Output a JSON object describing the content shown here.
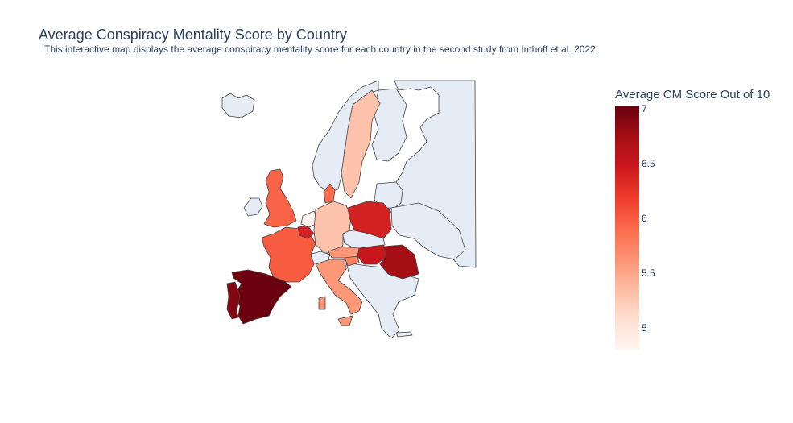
{
  "title": "Average Conspiracy Mentality Score by Country",
  "subtitle": "This interactive map displays the average conspiracy mentality score for each country in the second study from Imhoff et al. 2022.",
  "colorbar": {
    "title": "Average CM Score Out of 10",
    "min": 4.8,
    "max": 7.02,
    "ticks": [
      {
        "label": "7",
        "value": 7
      },
      {
        "label": "6.5",
        "value": 6.5
      },
      {
        "label": "6",
        "value": 6
      },
      {
        "label": "5.5",
        "value": 5.5
      },
      {
        "label": "5",
        "value": 5
      }
    ],
    "colorscale": [
      "#fff5f0",
      "#fee0d2",
      "#fcbba1",
      "#fc9272",
      "#fb6a4a",
      "#ef3b2c",
      "#cb181d",
      "#a50f15",
      "#67000d"
    ]
  },
  "no_data_color": "#e5ecf6",
  "chart_data": {
    "type": "choropleth",
    "scope": "europe",
    "countries": [
      "Spain",
      "Portugal",
      "Romania",
      "Hungary",
      "Poland",
      "Belgium",
      "France",
      "United Kingdom",
      "Denmark",
      "Slovenia",
      "Italy",
      "Austria",
      "Germany",
      "Sweden",
      "Netherlands"
    ],
    "values": [
      7.0,
      6.9,
      6.75,
      6.5,
      6.4,
      6.4,
      6.0,
      5.95,
      5.9,
      5.75,
      5.6,
      5.6,
      5.3,
      5.3,
      4.8
    ]
  }
}
